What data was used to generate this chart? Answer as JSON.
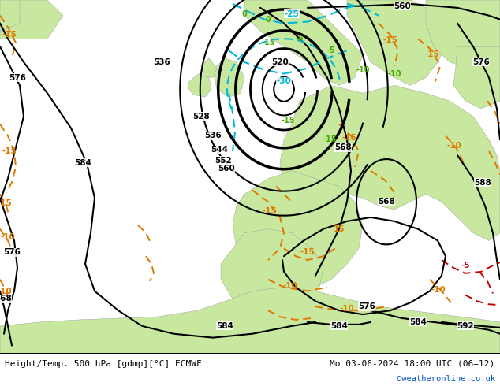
{
  "title_left": "Height/Temp. 500 hPa [gdmp][°C] ECMWF",
  "title_right": "Mo 03-06-2024 18:00 UTC (06+12)",
  "copyright": "©weatheronline.co.uk",
  "fig_width": 6.34,
  "fig_height": 4.9,
  "dpi": 100,
  "label_fontsize": 8.0,
  "copyright_fontsize": 7.5,
  "copyright_color": "#0055cc",
  "map_bg": "#d8d8d8",
  "land_green": "#c8e8a0",
  "sea_gray": "#c8c8c8",
  "bottom_bg": "#ffffff",
  "contour_black": "#000000",
  "contour_cyan": "#00b8d8",
  "contour_orange": "#e07800",
  "contour_red": "#cc0000",
  "contour_green_label": "#44aa00"
}
